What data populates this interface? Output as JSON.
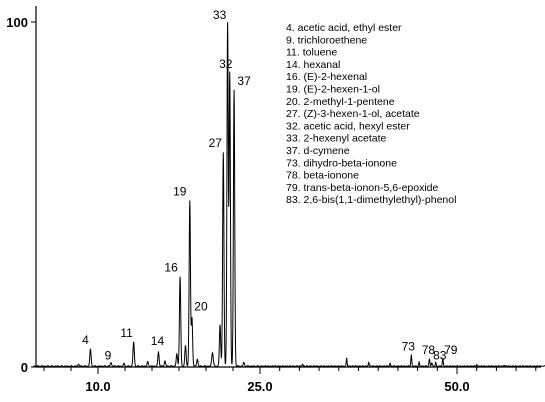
{
  "chart_data": {
    "type": "line",
    "title": "",
    "xlabel": "",
    "ylabel": "",
    "xlim": [
      4.0,
      62.0
    ],
    "ylim": [
      0,
      100
    ],
    "x_ticks": [
      10.0,
      25.0,
      50.0
    ],
    "x_tick_labels": [
      "10.0",
      "25.0",
      "50.0"
    ],
    "y_tick_labels": [
      "0",
      "100"
    ],
    "grid": false,
    "peaks": [
      {
        "label": "4",
        "x": 9.3,
        "y": 5
      },
      {
        "label": "9",
        "x": 11.2,
        "y": 1
      },
      {
        "label": "11",
        "x": 13.3,
        "y": 7
      },
      {
        "label": "14",
        "x": 15.6,
        "y": 4
      },
      {
        "label": "16",
        "x": 17.6,
        "y": 26
      },
      {
        "label": "19",
        "x": 18.5,
        "y": 48
      },
      {
        "label": "20",
        "x": 18.7,
        "y": 14
      },
      {
        "label": "27",
        "x": 21.6,
        "y": 62
      },
      {
        "label": "32",
        "x": 22.2,
        "y": 85
      },
      {
        "label": "33",
        "x": 22.0,
        "y": 100
      },
      {
        "label": "37",
        "x": 22.6,
        "y": 80
      },
      {
        "label": "73",
        "x": 44.2,
        "y": 3
      },
      {
        "label": "78",
        "x": 46.5,
        "y": 2
      },
      {
        "label": "79",
        "x": 48.2,
        "y": 2
      },
      {
        "label": "83",
        "x": 46.8,
        "y": 1
      }
    ],
    "legend": [
      "4. acetic acid, ethyl ester",
      "9.  trichloroethene",
      "11.  toluene",
      "14.  hexanal",
      "16.  (E)-2-hexenal",
      "19.  (E)-2-hexen-1-ol",
      "20.  2-methyl-1-pentene",
      "27. (Z)-3-hexen-1-ol, acetate",
      "32.  acetic acid, hexyl ester",
      "33. 2-hexenyl acetate",
      "37.  d-cymene",
      "73. dihydro-beta-ionone",
      "78. beta-ionone",
      "79.  trans-beta-ionon-5,6-epoxide",
      "83. 2,6-bis(1,1-dimethylethyl)-phenol"
    ],
    "legend_placement": "top-right"
  }
}
